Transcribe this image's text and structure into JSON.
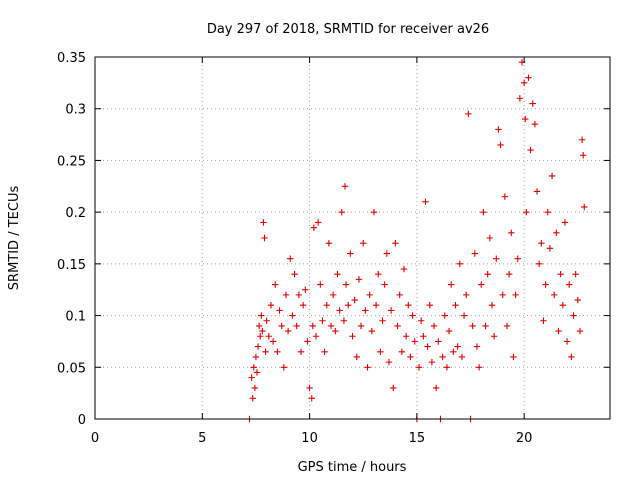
{
  "chart_data": {
    "type": "scatter",
    "title": "Day 297 of 2018, SRMTID for receiver av26",
    "xlabel": "GPS time / hours",
    "ylabel": "SRMTID / TECUs",
    "xlim": [
      0,
      24
    ],
    "ylim": [
      0,
      0.35
    ],
    "xticks": [
      0,
      5,
      10,
      15,
      20
    ],
    "xtick_labels": [
      "0",
      "5",
      "10",
      "15",
      "20"
    ],
    "yticks": [
      0,
      0.05,
      0.1,
      0.15,
      0.2,
      0.25,
      0.3,
      0.35
    ],
    "ytick_labels": [
      "0",
      "0.05",
      "0.1",
      "0.15",
      "0.2",
      "0.25",
      "0.3",
      "0.35"
    ],
    "grid": true,
    "marker": "plus",
    "color": "#e00000",
    "series": [
      {
        "name": "SRMTID",
        "points": [
          [
            7.2,
            0.0
          ],
          [
            7.3,
            0.04
          ],
          [
            7.35,
            0.02
          ],
          [
            7.4,
            0.05
          ],
          [
            7.45,
            0.03
          ],
          [
            7.5,
            0.06
          ],
          [
            7.55,
            0.045
          ],
          [
            7.6,
            0.07
          ],
          [
            7.65,
            0.09
          ],
          [
            7.7,
            0.08
          ],
          [
            7.75,
            0.1
          ],
          [
            7.8,
            0.085
          ],
          [
            7.85,
            0.19
          ],
          [
            7.9,
            0.175
          ],
          [
            7.95,
            0.065
          ],
          [
            8.0,
            0.095
          ],
          [
            8.1,
            0.08
          ],
          [
            8.2,
            0.11
          ],
          [
            8.3,
            0.075
          ],
          [
            8.4,
            0.13
          ],
          [
            8.5,
            0.065
          ],
          [
            8.6,
            0.105
          ],
          [
            8.7,
            0.09
          ],
          [
            8.8,
            0.05
          ],
          [
            8.9,
            0.12
          ],
          [
            9.0,
            0.085
          ],
          [
            9.1,
            0.155
          ],
          [
            9.2,
            0.1
          ],
          [
            9.3,
            0.14
          ],
          [
            9.4,
            0.09
          ],
          [
            9.5,
            0.12
          ],
          [
            9.6,
            0.065
          ],
          [
            9.7,
            0.11
          ],
          [
            9.8,
            0.125
          ],
          [
            9.9,
            0.075
          ],
          [
            10.0,
            0.03
          ],
          [
            10.1,
            0.02
          ],
          [
            10.15,
            0.09
          ],
          [
            10.2,
            0.185
          ],
          [
            10.3,
            0.08
          ],
          [
            10.4,
            0.19
          ],
          [
            10.5,
            0.13
          ],
          [
            10.6,
            0.095
          ],
          [
            10.7,
            0.065
          ],
          [
            10.8,
            0.11
          ],
          [
            10.9,
            0.17
          ],
          [
            11.0,
            0.09
          ],
          [
            11.1,
            0.12
          ],
          [
            11.2,
            0.085
          ],
          [
            11.3,
            0.14
          ],
          [
            11.4,
            0.105
          ],
          [
            11.5,
            0.2
          ],
          [
            11.6,
            0.095
          ],
          [
            11.65,
            0.225
          ],
          [
            11.7,
            0.13
          ],
          [
            11.8,
            0.11
          ],
          [
            11.9,
            0.16
          ],
          [
            12.0,
            0.08
          ],
          [
            12.1,
            0.115
          ],
          [
            12.2,
            0.06
          ],
          [
            12.3,
            0.135
          ],
          [
            12.4,
            0.09
          ],
          [
            12.5,
            0.17
          ],
          [
            12.6,
            0.105
          ],
          [
            12.7,
            0.05
          ],
          [
            12.8,
            0.12
          ],
          [
            12.9,
            0.085
          ],
          [
            13.0,
            0.2
          ],
          [
            13.1,
            0.11
          ],
          [
            13.2,
            0.14
          ],
          [
            13.3,
            0.065
          ],
          [
            13.4,
            0.095
          ],
          [
            13.5,
            0.13
          ],
          [
            13.6,
            0.16
          ],
          [
            13.7,
            0.055
          ],
          [
            13.8,
            0.105
          ],
          [
            13.9,
            0.03
          ],
          [
            14.0,
            0.17
          ],
          [
            14.1,
            0.09
          ],
          [
            14.2,
            0.12
          ],
          [
            14.3,
            0.065
          ],
          [
            14.4,
            0.145
          ],
          [
            14.5,
            0.08
          ],
          [
            14.6,
            0.11
          ],
          [
            14.7,
            0.06
          ],
          [
            14.8,
            0.1
          ],
          [
            14.9,
            0.075
          ],
          [
            15.0,
            0.0
          ],
          [
            15.1,
            0.05
          ],
          [
            15.2,
            0.095
          ],
          [
            15.3,
            0.08
          ],
          [
            15.4,
            0.21
          ],
          [
            15.5,
            0.07
          ],
          [
            15.6,
            0.11
          ],
          [
            15.7,
            0.055
          ],
          [
            15.8,
            0.09
          ],
          [
            15.9,
            0.03
          ],
          [
            16.0,
            0.075
          ],
          [
            16.1,
            0.0
          ],
          [
            16.2,
            0.06
          ],
          [
            16.3,
            0.1
          ],
          [
            16.4,
            0.05
          ],
          [
            16.5,
            0.085
          ],
          [
            16.6,
            0.13
          ],
          [
            16.7,
            0.065
          ],
          [
            16.8,
            0.11
          ],
          [
            16.9,
            0.07
          ],
          [
            17.0,
            0.15
          ],
          [
            17.1,
            0.06
          ],
          [
            17.2,
            0.1
          ],
          [
            17.3,
            0.12
          ],
          [
            17.4,
            0.295
          ],
          [
            17.5,
            0.0
          ],
          [
            17.6,
            0.09
          ],
          [
            17.7,
            0.16
          ],
          [
            17.8,
            0.07
          ],
          [
            17.9,
            0.05
          ],
          [
            18.0,
            0.13
          ],
          [
            18.1,
            0.2
          ],
          [
            18.2,
            0.09
          ],
          [
            18.3,
            0.14
          ],
          [
            18.4,
            0.175
          ],
          [
            18.5,
            0.11
          ],
          [
            18.6,
            0.08
          ],
          [
            18.7,
            0.155
          ],
          [
            18.8,
            0.28
          ],
          [
            18.9,
            0.265
          ],
          [
            19.0,
            0.12
          ],
          [
            19.1,
            0.215
          ],
          [
            19.2,
            0.09
          ],
          [
            19.3,
            0.14
          ],
          [
            19.4,
            0.18
          ],
          [
            19.5,
            0.06
          ],
          [
            19.6,
            0.12
          ],
          [
            19.7,
            0.155
          ],
          [
            19.8,
            0.31
          ],
          [
            19.9,
            0.345
          ],
          [
            20.0,
            0.325
          ],
          [
            20.05,
            0.29
          ],
          [
            20.1,
            0.2
          ],
          [
            20.2,
            0.33
          ],
          [
            20.3,
            0.26
          ],
          [
            20.4,
            0.305
          ],
          [
            20.5,
            0.285
          ],
          [
            20.6,
            0.22
          ],
          [
            20.7,
            0.15
          ],
          [
            20.8,
            0.17
          ],
          [
            20.9,
            0.095
          ],
          [
            21.0,
            0.13
          ],
          [
            21.1,
            0.2
          ],
          [
            21.2,
            0.165
          ],
          [
            21.3,
            0.235
          ],
          [
            21.4,
            0.12
          ],
          [
            21.5,
            0.18
          ],
          [
            21.6,
            0.085
          ],
          [
            21.7,
            0.14
          ],
          [
            21.8,
            0.11
          ],
          [
            21.9,
            0.19
          ],
          [
            22.0,
            0.075
          ],
          [
            22.1,
            0.13
          ],
          [
            22.2,
            0.06
          ],
          [
            22.3,
            0.1
          ],
          [
            22.4,
            0.14
          ],
          [
            22.5,
            0.115
          ],
          [
            22.6,
            0.085
          ],
          [
            22.7,
            0.27
          ],
          [
            22.75,
            0.255
          ],
          [
            22.8,
            0.205
          ]
        ]
      }
    ]
  }
}
